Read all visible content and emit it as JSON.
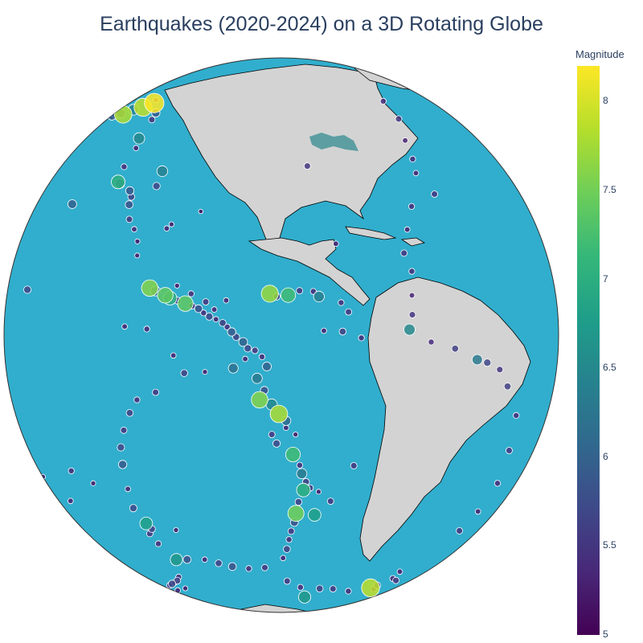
{
  "title": "Earthquakes (2020-2024) on a 3D Rotating Globe",
  "colors": {
    "ocean": "#31aecd",
    "land": "#d3d3d3",
    "border": "#000000",
    "lake": "#5c9ea2",
    "marker_outline": "#ffffff",
    "colorscale": [
      "#440154",
      "#482878",
      "#3e4989",
      "#31688e",
      "#26828e",
      "#1f9e89",
      "#35b779",
      "#6ece58",
      "#b5de2b",
      "#fde725"
    ]
  },
  "chart_data": {
    "type": "scatter",
    "projection": "orthographic",
    "center": {
      "lon": -75,
      "lat": 10
    },
    "colorbar": {
      "title": "Magnitude",
      "range": [
        5,
        8.2
      ],
      "ticks": [
        "5",
        "5.5",
        "6",
        "6.5",
        "7",
        "7.5",
        "8"
      ]
    },
    "points": [
      {
        "lon": -147.0,
        "lat": 61.2,
        "mag": 8.2
      },
      {
        "lon": -150.5,
        "lat": 59.0,
        "mag": 7.9
      },
      {
        "lon": -155.4,
        "lat": 57.3,
        "mag": 6.4
      },
      {
        "lon": -159.0,
        "lat": 55.0,
        "mag": 7.8
      },
      {
        "lon": -163.5,
        "lat": 54.6,
        "mag": 6.1
      },
      {
        "lon": -168.0,
        "lat": 53.2,
        "mag": 5.8
      },
      {
        "lon": -172.5,
        "lat": 52.0,
        "mag": 5.6
      },
      {
        "lon": -176.0,
        "lat": 51.5,
        "mag": 6.0
      },
      {
        "lon": -152.0,
        "lat": 60.3,
        "mag": 5.4
      },
      {
        "lon": -149.5,
        "lat": 62.0,
        "mag": 5.3
      },
      {
        "lon": -136.5,
        "lat": 59.0,
        "mag": 5.9
      },
      {
        "lon": -134.0,
        "lat": 57.0,
        "mag": 5.5
      },
      {
        "lon": -130.5,
        "lat": 51.5,
        "mag": 6.5
      },
      {
        "lon": -128.0,
        "lat": 49.0,
        "mag": 5.3
      },
      {
        "lon": -127.0,
        "lat": 44.0,
        "mag": 5.4
      },
      {
        "lon": -125.5,
        "lat": 40.3,
        "mag": 7.0
      },
      {
        "lon": -124.5,
        "lat": 40.0,
        "mag": 6.2
      },
      {
        "lon": -118.0,
        "lat": 37.5,
        "mag": 5.6
      },
      {
        "lon": -117.5,
        "lat": 35.7,
        "mag": 5.8
      },
      {
        "lon": -115.5,
        "lat": 32.5,
        "mag": 5.5
      },
      {
        "lon": -113.0,
        "lat": 30.5,
        "mag": 5.3
      },
      {
        "lon": -111.0,
        "lat": 28.0,
        "mag": 5.2
      },
      {
        "lon": -119.5,
        "lat": 38.8,
        "mag": 5.9
      },
      {
        "lon": -112.0,
        "lat": 44.5,
        "mag": 6.4
      },
      {
        "lon": -111.5,
        "lat": 40.8,
        "mag": 5.7
      },
      {
        "lon": -104.0,
        "lat": 31.5,
        "mag": 5.3
      },
      {
        "lon": -103.0,
        "lat": 32.5,
        "mag": 5.2
      },
      {
        "lon": -96.0,
        "lat": 35.9,
        "mag": 5.1
      },
      {
        "lon": -139.0,
        "lat": 33.0,
        "mag": 6.0
      },
      {
        "lon": -110.0,
        "lat": 25.0,
        "mag": 5.2
      },
      {
        "lon": -105.0,
        "lat": 18.5,
        "mag": 7.6
      },
      {
        "lon": -103.5,
        "lat": 18.0,
        "mag": 6.2
      },
      {
        "lon": -101.0,
        "lat": 17.3,
        "mag": 7.4
      },
      {
        "lon": -99.8,
        "lat": 16.8,
        "mag": 7.0
      },
      {
        "lon": -98.0,
        "lat": 16.4,
        "mag": 5.6
      },
      {
        "lon": -96.1,
        "lat": 15.9,
        "mag": 7.4
      },
      {
        "lon": -94.5,
        "lat": 15.5,
        "mag": 5.5
      },
      {
        "lon": -93.0,
        "lat": 15.0,
        "mag": 5.8
      },
      {
        "lon": -91.8,
        "lat": 14.2,
        "mag": 5.4
      },
      {
        "lon": -90.5,
        "lat": 13.5,
        "mag": 5.7
      },
      {
        "lon": -89.0,
        "lat": 13.0,
        "mag": 5.3
      },
      {
        "lon": -87.5,
        "lat": 12.3,
        "mag": 5.6
      },
      {
        "lon": -86.5,
        "lat": 11.5,
        "mag": 5.4
      },
      {
        "lon": -85.5,
        "lat": 10.5,
        "mag": 5.9
      },
      {
        "lon": -84.5,
        "lat": 9.5,
        "mag": 5.6
      },
      {
        "lon": -83.0,
        "lat": 8.5,
        "mag": 6.0
      },
      {
        "lon": -82.0,
        "lat": 7.2,
        "mag": 5.7
      },
      {
        "lon": -80.5,
        "lat": 6.8,
        "mag": 5.5
      },
      {
        "lon": -79.0,
        "lat": 5.5,
        "mag": 5.4
      },
      {
        "lon": -78.0,
        "lat": 3.5,
        "mag": 6.0
      },
      {
        "lon": -82.5,
        "lat": 5.0,
        "mag": 5.3
      },
      {
        "lon": -85.0,
        "lat": 3.0,
        "mag": 6.2
      },
      {
        "lon": -77.5,
        "lat": 18.6,
        "mag": 7.7
      },
      {
        "lon": -76.0,
        "lat": 18.0,
        "mag": 5.6
      },
      {
        "lon": -73.5,
        "lat": 18.3,
        "mag": 7.2
      },
      {
        "lon": -71.0,
        "lat": 19.2,
        "mag": 5.5
      },
      {
        "lon": -68.0,
        "lat": 19.0,
        "mag": 5.4
      },
      {
        "lon": -66.8,
        "lat": 17.9,
        "mag": 6.4
      },
      {
        "lon": -62.0,
        "lat": 16.5,
        "mag": 5.4
      },
      {
        "lon": -60.5,
        "lat": 14.5,
        "mag": 5.5
      },
      {
        "lon": -87.0,
        "lat": 17.0,
        "mag": 5.3
      },
      {
        "lon": -110.0,
        "lat": 10.0,
        "mag": 5.3
      },
      {
        "lon": -104.5,
        "lat": 10.0,
        "mag": 5.4
      },
      {
        "lon": -98.0,
        "lat": 5.0,
        "mag": 5.3
      },
      {
        "lon": -91.0,
        "lat": 2.0,
        "mag": 5.2
      },
      {
        "lon": -95.5,
        "lat": 1.5,
        "mag": 5.6
      },
      {
        "lon": -102.0,
        "lat": -3.0,
        "mag": 5.5
      },
      {
        "lon": -106.5,
        "lat": -5.0,
        "mag": 5.4
      },
      {
        "lon": -108.5,
        "lat": -8.0,
        "mag": 5.6
      },
      {
        "lon": -110.5,
        "lat": -12.0,
        "mag": 5.5
      },
      {
        "lon": -112.0,
        "lat": -16.0,
        "mag": 5.7
      },
      {
        "lon": -112.5,
        "lat": -20.0,
        "mag": 5.9
      },
      {
        "lon": -113.0,
        "lat": -26.0,
        "mag": 5.3
      },
      {
        "lon": -113.5,
        "lat": -31.0,
        "mag": 5.7
      },
      {
        "lon": -111.5,
        "lat": -35.0,
        "mag": 6.8
      },
      {
        "lon": -110.5,
        "lat": -36.5,
        "mag": 5.6
      },
      {
        "lon": -112.0,
        "lat": -38.0,
        "mag": 5.5
      },
      {
        "lon": -111.0,
        "lat": -41.0,
        "mag": 5.4
      },
      {
        "lon": -103.0,
        "lat": -36.0,
        "mag": 5.2
      },
      {
        "lon": -108.0,
        "lat": -46.0,
        "mag": 6.7
      },
      {
        "lon": -104.0,
        "lat": -45.5,
        "mag": 5.8
      },
      {
        "lon": -98.0,
        "lat": -45.0,
        "mag": 5.3
      },
      {
        "lon": -94.0,
        "lat": -46.0,
        "mag": 5.6
      },
      {
        "lon": -90.0,
        "lat": -47.0,
        "mag": 5.8
      },
      {
        "lon": -85.0,
        "lat": -47.5,
        "mag": 5.4
      },
      {
        "lon": -80.0,
        "lat": -47.0,
        "mag": 5.5
      },
      {
        "lon": -113.5,
        "lat": -53.5,
        "mag": 5.4
      },
      {
        "lon": -116.5,
        "lat": -55.5,
        "mag": 5.6
      },
      {
        "lon": -120.0,
        "lat": -57.0,
        "mag": 5.3
      },
      {
        "lon": -123.0,
        "lat": -58.0,
        "mag": 5.7
      },
      {
        "lon": -127.5,
        "lat": -59.5,
        "mag": 5.4
      },
      {
        "lon": -129.0,
        "lat": -62.5,
        "mag": 5.3
      },
      {
        "lon": -118.0,
        "lat": -59.5,
        "mag": 5.2
      },
      {
        "lon": -140.0,
        "lat": -33.0,
        "mag": 5.3
      },
      {
        "lon": -131.0,
        "lat": -24.0,
        "mag": 5.4
      },
      {
        "lon": -124.0,
        "lat": -26.0,
        "mag": 5.2
      },
      {
        "lon": -145.0,
        "lat": 13.0,
        "mag": 5.7
      },
      {
        "lon": -158.0,
        "lat": -30.0,
        "mag": 5.2
      },
      {
        "lon": -80.0,
        "lat": 1.0,
        "mag": 6.3
      },
      {
        "lon": -78.5,
        "lat": -1.5,
        "mag": 5.8
      },
      {
        "lon": -79.5,
        "lat": -3.5,
        "mag": 7.6
      },
      {
        "lon": -77.0,
        "lat": -4.5,
        "mag": 6.5
      },
      {
        "lon": -75.5,
        "lat": -6.5,
        "mag": 7.8
      },
      {
        "lon": -74.0,
        "lat": -8.0,
        "mag": 6.1
      },
      {
        "lon": -77.0,
        "lat": -11.0,
        "mag": 5.5
      },
      {
        "lon": -76.0,
        "lat": -13.0,
        "mag": 5.7
      },
      {
        "lon": -72.5,
        "lat": -15.5,
        "mag": 7.2
      },
      {
        "lon": -71.0,
        "lat": -18.0,
        "mag": 5.4
      },
      {
        "lon": -70.5,
        "lat": -20.0,
        "mag": 6.3
      },
      {
        "lon": -69.5,
        "lat": -22.0,
        "mag": 5.6
      },
      {
        "lon": -70.0,
        "lat": -24.0,
        "mag": 7.0
      },
      {
        "lon": -68.5,
        "lat": -23.5,
        "mag": 5.5
      },
      {
        "lon": -71.0,
        "lat": -27.0,
        "mag": 5.6
      },
      {
        "lon": -71.5,
        "lat": -30.0,
        "mag": 7.5
      },
      {
        "lon": -71.8,
        "lat": -32.5,
        "mag": 5.8
      },
      {
        "lon": -72.5,
        "lat": -35.0,
        "mag": 5.5
      },
      {
        "lon": -73.0,
        "lat": -37.5,
        "mag": 5.4
      },
      {
        "lon": -73.5,
        "lat": -40.5,
        "mag": 5.6
      },
      {
        "lon": -74.5,
        "lat": -43.5,
        "mag": 5.3
      },
      {
        "lon": -67.0,
        "lat": -30.5,
        "mag": 6.8
      },
      {
        "lon": -63.5,
        "lat": -27.0,
        "mag": 5.5
      },
      {
        "lon": -66.5,
        "lat": -24.5,
        "mag": 5.2
      },
      {
        "lon": -74.0,
        "lat": -9.5,
        "mag": 5.3
      },
      {
        "lon": -72.0,
        "lat": -11.0,
        "mag": 5.2
      },
      {
        "lon": -73.0,
        "lat": -52.5,
        "mag": 5.5
      },
      {
        "lon": -68.0,
        "lat": -55.5,
        "mag": 5.4
      },
      {
        "lon": -60.5,
        "lat": -56.5,
        "mag": 5.6
      },
      {
        "lon": -55.0,
        "lat": -57.0,
        "mag": 5.5
      },
      {
        "lon": -47.0,
        "lat": -59.0,
        "mag": 5.4
      },
      {
        "lon": -37.0,
        "lat": -58.5,
        "mag": 7.9
      },
      {
        "lon": -35.0,
        "lat": -57.5,
        "mag": 5.6
      },
      {
        "lon": -34.0,
        "lat": -59.5,
        "mag": 5.4
      },
      {
        "lon": -65.0,
        "lat": -61.0,
        "mag": 6.7
      },
      {
        "lon": -30.5,
        "lat": -55.0,
        "mag": 5.4
      },
      {
        "lon": -31.0,
        "lat": -52.0,
        "mag": 5.3
      },
      {
        "lon": -26.5,
        "lat": -56.5,
        "mag": 5.5
      },
      {
        "lon": -59.0,
        "lat": -18.5,
        "mag": 5.5
      },
      {
        "lon": -58.0,
        "lat": 9.0,
        "mag": 5.4
      },
      {
        "lon": -62.0,
        "lat": 10.5,
        "mag": 5.6
      },
      {
        "lon": -66.0,
        "lat": 10.8,
        "mag": 5.3
      },
      {
        "lon": -45.5,
        "lat": 26.0,
        "mag": 5.5
      },
      {
        "lon": -44.5,
        "lat": 22.0,
        "mag": 5.4
      },
      {
        "lon": -45.5,
        "lat": 17.0,
        "mag": 5.3
      },
      {
        "lon": -46.0,
        "lat": 13.0,
        "mag": 5.5
      },
      {
        "lon": -47.0,
        "lat": 10.0,
        "mag": 6.5
      },
      {
        "lon": -42.0,
        "lat": 7.0,
        "mag": 5.4
      },
      {
        "lon": -36.0,
        "lat": 5.0,
        "mag": 5.6
      },
      {
        "lon": -30.0,
        "lat": 2.0,
        "mag": 6.3
      },
      {
        "lon": -27.0,
        "lat": 1.0,
        "mag": 5.7
      },
      {
        "lon": -23.0,
        "lat": -1.0,
        "mag": 5.5
      },
      {
        "lon": -20.0,
        "lat": -5.0,
        "mag": 5.6
      },
      {
        "lon": -15.0,
        "lat": -12.0,
        "mag": 5.4
      },
      {
        "lon": -14.0,
        "lat": -20.0,
        "mag": 5.5
      },
      {
        "lon": -13.0,
        "lat": -28.0,
        "mag": 5.4
      },
      {
        "lon": -15.0,
        "lat": -35.0,
        "mag": 5.3
      },
      {
        "lon": -18.0,
        "lat": -40.0,
        "mag": 5.5
      },
      {
        "lon": -43.0,
        "lat": 31.0,
        "mag": 5.3
      },
      {
        "lon": -39.5,
        "lat": 36.0,
        "mag": 5.4
      },
      {
        "lon": -30.5,
        "lat": 38.0,
        "mag": 5.5
      },
      {
        "lon": -33.0,
        "lat": 43.5,
        "mag": 5.3
      },
      {
        "lon": -31.0,
        "lat": 47.0,
        "mag": 5.4
      },
      {
        "lon": -28.5,
        "lat": 52.0,
        "mag": 5.3
      },
      {
        "lon": -22.0,
        "lat": 58.0,
        "mag": 5.5
      },
      {
        "lon": -18.0,
        "lat": 64.0,
        "mag": 5.4
      },
      {
        "lon": -67.0,
        "lat": 47.5,
        "mag": 5.5
      },
      {
        "lon": -62.0,
        "lat": 29.0,
        "mag": 5.3
      },
      {
        "lon": -95.0,
        "lat": 18.0,
        "mag": 5.4
      },
      {
        "lon": -98.5,
        "lat": 19.5,
        "mag": 5.2
      },
      {
        "lon": -91.5,
        "lat": 16.5,
        "mag": 5.5
      },
      {
        "lon": -89.5,
        "lat": 15.0,
        "mag": 5.3
      }
    ]
  }
}
